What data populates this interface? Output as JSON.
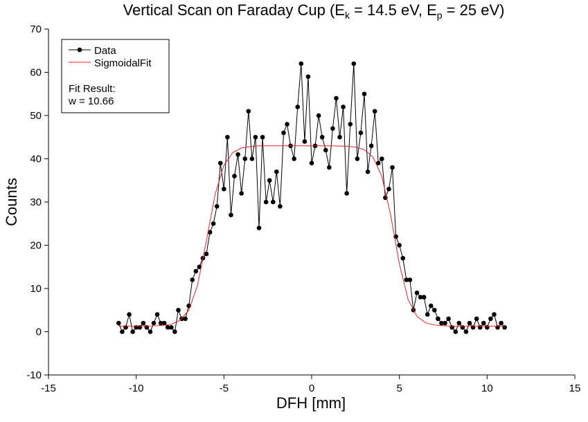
{
  "chart_data": {
    "type": "line",
    "title_parts": [
      "Vertical Scan on Faraday Cup (E",
      "k",
      " = 14.5 eV, E",
      "p",
      " = 25 eV)"
    ],
    "x_label": "DFH [mm]",
    "y_label": "Counts",
    "annotation": [
      "Fit Result:",
      "w = 10.66"
    ],
    "xlim": [
      -15,
      15
    ],
    "xticks": [
      -15,
      -10,
      -5,
      0,
      5,
      10,
      15
    ],
    "ylim": [
      -10,
      70
    ],
    "yticks": [
      -10,
      0,
      10,
      20,
      30,
      40,
      50,
      60,
      70
    ],
    "legend": "top-left",
    "series": [
      {
        "name": "Data",
        "color": "#000000",
        "markers": true,
        "x": [
          -11,
          -10.8,
          -10.6,
          -10.4,
          -10.2,
          -10,
          -9.8,
          -9.6,
          -9.4,
          -9.2,
          -9,
          -8.8,
          -8.6,
          -8.4,
          -8.2,
          -8,
          -7.8,
          -7.6,
          -7.4,
          -7.2,
          -7,
          -6.8,
          -6.6,
          -6.4,
          -6.2,
          -6,
          -5.8,
          -5.6,
          -5.4,
          -5.2,
          -5,
          -4.8,
          -4.6,
          -4.4,
          -4.2,
          -4,
          -3.8,
          -3.6,
          -3.4,
          -3.2,
          -3,
          -2.8,
          -2.6,
          -2.4,
          -2.2,
          -2,
          -1.8,
          -1.6,
          -1.4,
          -1.2,
          -1,
          -0.8,
          -0.6,
          -0.4,
          -0.2,
          0,
          0.2,
          0.4,
          0.6,
          0.8,
          1,
          1.2,
          1.4,
          1.6,
          1.8,
          2,
          2.2,
          2.4,
          2.6,
          2.8,
          3,
          3.2,
          3.4,
          3.6,
          3.8,
          4,
          4.2,
          4.4,
          4.6,
          4.8,
          5,
          5.2,
          5.4,
          5.6,
          5.8,
          6,
          6.2,
          6.4,
          6.6,
          6.8,
          7,
          7.2,
          7.4,
          7.6,
          7.8,
          8,
          8.2,
          8.4,
          8.6,
          8.8,
          9,
          9.2,
          9.4,
          9.6,
          9.8,
          10,
          10.2,
          10.4,
          10.6,
          10.8,
          11
        ],
        "values": [
          2,
          0,
          1,
          4,
          0,
          1,
          1,
          2,
          1,
          0,
          2,
          4,
          2,
          2,
          1,
          1,
          0,
          5,
          3,
          3,
          6,
          12,
          14,
          15,
          17,
          18,
          23,
          25,
          29,
          39,
          33,
          45,
          27,
          36,
          41,
          32,
          40,
          51,
          40,
          45,
          24,
          45,
          30,
          35,
          30,
          37,
          29,
          46,
          48,
          43,
          40,
          52,
          62,
          44,
          59,
          39,
          43,
          50,
          45,
          42,
          38,
          47,
          54,
          45,
          52,
          32,
          48,
          62,
          40,
          46,
          55,
          37,
          43,
          51,
          39,
          40,
          31,
          33,
          38,
          22,
          20,
          17,
          12,
          12,
          5,
          9,
          8,
          8,
          4,
          6,
          5,
          3,
          2,
          2,
          3,
          1,
          0,
          2,
          1,
          0,
          2,
          1,
          3,
          1,
          2,
          1,
          3,
          4,
          1,
          2,
          1
        ]
      },
      {
        "name": "SigmoidalFit",
        "color": "#e8202a",
        "markers": false,
        "x": [
          -11,
          -10,
          -9,
          -8.5,
          -8,
          -7.5,
          -7,
          -6.5,
          -6,
          -5.5,
          -5,
          -4.5,
          -4,
          -3.5,
          -3,
          -2,
          -1,
          0,
          1,
          2,
          2.5,
          3,
          3.5,
          4,
          4.5,
          5,
          5.5,
          6,
          6.5,
          7,
          7.5,
          8,
          9,
          10,
          11
        ],
        "values": [
          1.3,
          1.3,
          1.35,
          1.44,
          1.73,
          2.6,
          5.0,
          10.8,
          21.0,
          31.8,
          38.5,
          41.4,
          42.5,
          42.8,
          43,
          43,
          43,
          43,
          43,
          42.9,
          42.7,
          42.1,
          40.4,
          35.9,
          27.0,
          15.7,
          7.4,
          3.55,
          2.05,
          1.55,
          1.38,
          1.3,
          1.3,
          1.3,
          1.3
        ]
      }
    ]
  }
}
